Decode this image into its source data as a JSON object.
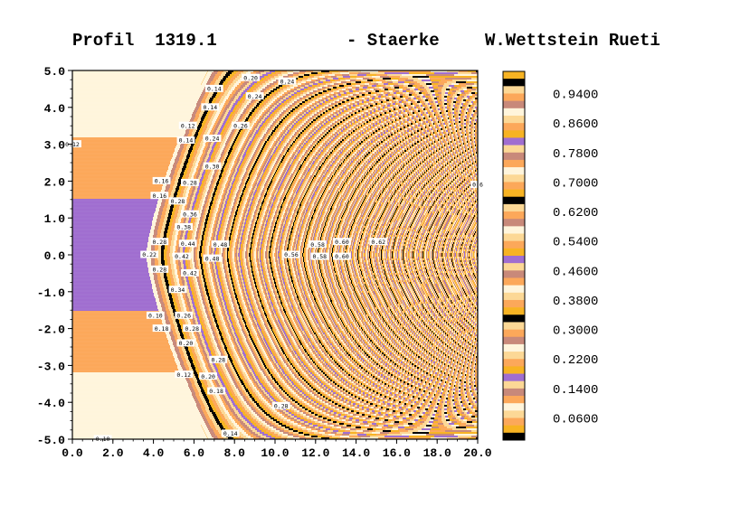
{
  "title": {
    "left": "Profil  1319.1",
    "middle": "- Staerke",
    "right": "W.Wettstein Rueti"
  },
  "colors": {
    "palette": [
      "#000000",
      "#f7b323",
      "#fca85a",
      "#fcd896",
      "#fff5dc",
      "#c38a8a",
      "#9e6ed6",
      "#c58a9a"
    ],
    "cb_bands": [
      "#000000",
      "#f7b323",
      "#fca85a",
      "#fcd896",
      "#fff5dc",
      "#fca85a",
      "#c8897a",
      "#fcd896",
      "#a06ed0",
      "#f7b323",
      "#fca85a",
      "#fcd896",
      "#fff5dc",
      "#c8897a",
      "#fca85a",
      "#fcd896"
    ]
  },
  "chart_data": {
    "type": "heatmap",
    "subtype": "filled-contour",
    "xlim": [
      0.0,
      20.0
    ],
    "ylim": [
      -5.0,
      5.0
    ],
    "xticks": [
      "0.0",
      "2.0",
      "4.0",
      "6.0",
      "8.0",
      "10.0",
      "12.0",
      "14.0",
      "16.0",
      "18.0",
      "20.0"
    ],
    "yticks": [
      "5.0",
      "4.0",
      "3.0",
      "2.0",
      "1.0",
      "0.0",
      "-1.0",
      "-2.0",
      "-3.0",
      "-4.0",
      "-5.0"
    ],
    "colorbar": {
      "labels": [
        "0.9400",
        "0.8600",
        "0.7800",
        "0.7000",
        "0.6200",
        "0.5400",
        "0.4600",
        "0.3800",
        "0.3000",
        "0.2200",
        "0.1400",
        "0.0600"
      ],
      "min": 0.0,
      "max": 1.0,
      "step": 0.02
    },
    "contour_labels": [
      {
        "x": 7.0,
        "y": 4.5,
        "text": "0.14"
      },
      {
        "x": 8.8,
        "y": 4.8,
        "text": "0.20"
      },
      {
        "x": 10.6,
        "y": 4.7,
        "text": "0.24"
      },
      {
        "x": 9.0,
        "y": 4.3,
        "text": "0.24"
      },
      {
        "x": 6.8,
        "y": 4.0,
        "text": "0.14"
      },
      {
        "x": 5.7,
        "y": 3.5,
        "text": "0.12"
      },
      {
        "x": 8.3,
        "y": 3.5,
        "text": "0.26"
      },
      {
        "x": 5.6,
        "y": 3.1,
        "text": "0.14"
      },
      {
        "x": 6.9,
        "y": 3.15,
        "text": "0.24"
      },
      {
        "x": 0.0,
        "y": 3.0,
        "text": "0.12"
      },
      {
        "x": 6.9,
        "y": 2.4,
        "text": "0.30"
      },
      {
        "x": 4.4,
        "y": 2.0,
        "text": "0.16"
      },
      {
        "x": 5.8,
        "y": 1.95,
        "text": "0.28"
      },
      {
        "x": 4.3,
        "y": 1.6,
        "text": "0.16"
      },
      {
        "x": 5.2,
        "y": 1.45,
        "text": "0.28"
      },
      {
        "x": 5.8,
        "y": 1.1,
        "text": "0.36"
      },
      {
        "x": 5.5,
        "y": 0.75,
        "text": "0.38"
      },
      {
        "x": 4.3,
        "y": 0.35,
        "text": "0.28"
      },
      {
        "x": 5.7,
        "y": 0.3,
        "text": "0.44"
      },
      {
        "x": 7.3,
        "y": 0.28,
        "text": "0.48"
      },
      {
        "x": 12.1,
        "y": 0.28,
        "text": "0.58"
      },
      {
        "x": 13.3,
        "y": 0.35,
        "text": "0.60"
      },
      {
        "x": 15.1,
        "y": 0.35,
        "text": "0.62"
      },
      {
        "x": 3.8,
        "y": 0.0,
        "text": "0.22"
      },
      {
        "x": 5.4,
        "y": -0.05,
        "text": "0.42"
      },
      {
        "x": 6.9,
        "y": -0.1,
        "text": "0.48"
      },
      {
        "x": 10.8,
        "y": 0.0,
        "text": "0.56"
      },
      {
        "x": 12.2,
        "y": -0.05,
        "text": "0.58"
      },
      {
        "x": 13.3,
        "y": -0.05,
        "text": "0.60"
      },
      {
        "x": 4.3,
        "y": -0.4,
        "text": "0.28"
      },
      {
        "x": 5.8,
        "y": -0.5,
        "text": "0.42"
      },
      {
        "x": 5.2,
        "y": -0.95,
        "text": "0.34"
      },
      {
        "x": 4.1,
        "y": -1.65,
        "text": "0.10"
      },
      {
        "x": 5.5,
        "y": -1.65,
        "text": "0.26"
      },
      {
        "x": 4.4,
        "y": -2.0,
        "text": "0.18"
      },
      {
        "x": 5.9,
        "y": -2.0,
        "text": "0.28"
      },
      {
        "x": 5.6,
        "y": -2.4,
        "text": "0.20"
      },
      {
        "x": 7.2,
        "y": -2.85,
        "text": "0.28"
      },
      {
        "x": 5.5,
        "y": -3.25,
        "text": "0.12"
      },
      {
        "x": 6.7,
        "y": -3.3,
        "text": "0.20"
      },
      {
        "x": 7.1,
        "y": -3.7,
        "text": "0.18"
      },
      {
        "x": 10.3,
        "y": -4.1,
        "text": "0.28"
      },
      {
        "x": 7.8,
        "y": -4.85,
        "text": "0.14"
      },
      {
        "x": 1.5,
        "y": -5.0,
        "text": "0.10"
      },
      {
        "x": 20.0,
        "y": 1.9,
        "text": "0.6"
      }
    ]
  }
}
